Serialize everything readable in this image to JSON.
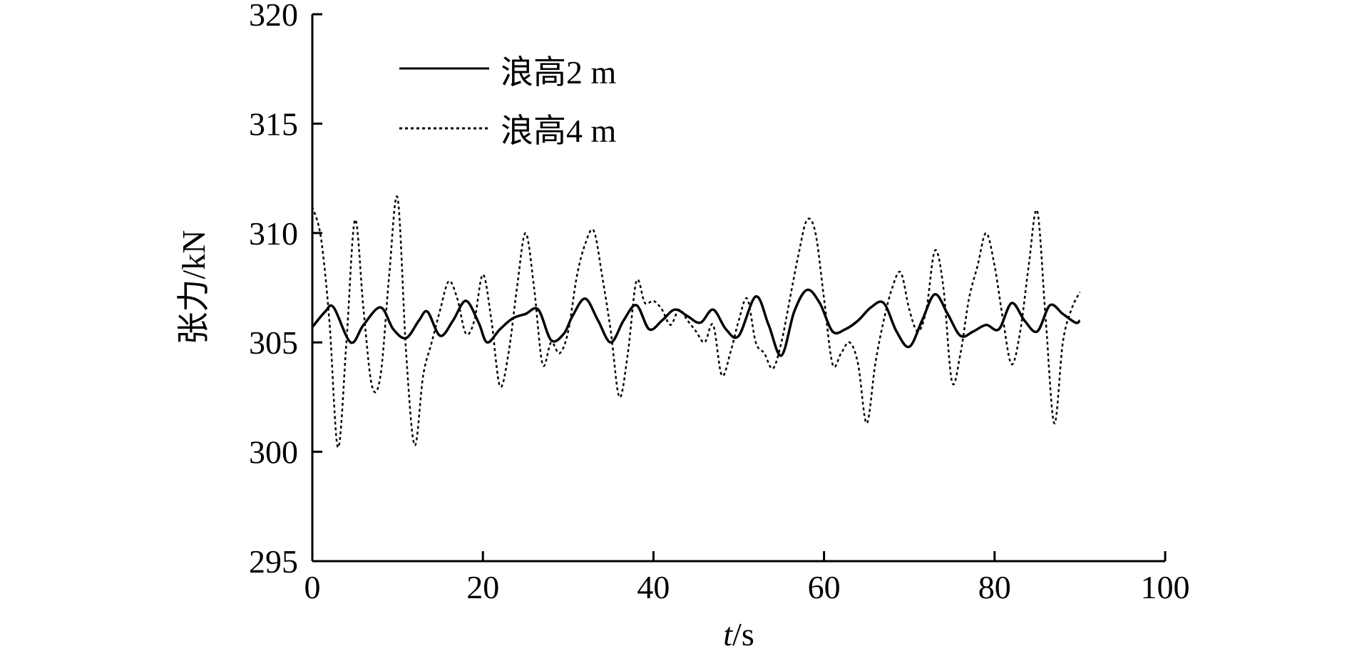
{
  "chart_data": {
    "type": "line",
    "xlabel_var": "t",
    "xlabel_unit": "/s",
    "ylabel": "张力/kN",
    "xlim": [
      0,
      100
    ],
    "ylim": [
      295,
      320
    ],
    "xticks": [
      0,
      20,
      40,
      60,
      80,
      100
    ],
    "yticks": [
      295,
      300,
      305,
      310,
      315,
      320
    ],
    "xtick_labels": [
      "0",
      "20",
      "40",
      "60",
      "80",
      "100"
    ],
    "ytick_labels": [
      "295",
      "300",
      "305",
      "310",
      "315",
      "320"
    ],
    "grid": false,
    "legend_position": "top-left",
    "series": [
      {
        "name": "浪高2 m",
        "style": "solid",
        "color": "#000000",
        "x": [
          0,
          1.5,
          2.5,
          4.5,
          6,
          8,
          9.5,
          11,
          12.5,
          13.5,
          15,
          16.5,
          18,
          19.5,
          20.5,
          22,
          23.5,
          25,
          26.5,
          28,
          29.5,
          30.5,
          32,
          33.5,
          35,
          36.5,
          38,
          39.5,
          41,
          42.5,
          44,
          45.5,
          47,
          48.5,
          50,
          52,
          53.5,
          55,
          56.5,
          58,
          59.5,
          61,
          62.5,
          64,
          65.5,
          67,
          68.5,
          70,
          71.5,
          73,
          74.5,
          76,
          77.5,
          79,
          80.5,
          82,
          83.5,
          85,
          86.5,
          88,
          89.5,
          90
        ],
        "y": [
          305.7,
          306.4,
          306.6,
          305.0,
          305.8,
          306.6,
          305.6,
          305.2,
          306.0,
          306.4,
          305.3,
          306.0,
          306.9,
          305.9,
          305.0,
          305.6,
          306.1,
          306.3,
          306.5,
          305.1,
          305.4,
          306.2,
          307.0,
          306.0,
          305.0,
          306.0,
          306.7,
          305.6,
          306.0,
          306.5,
          306.2,
          305.9,
          306.5,
          305.6,
          305.3,
          307.1,
          305.8,
          304.4,
          306.4,
          307.4,
          306.8,
          305.5,
          305.6,
          306.0,
          306.6,
          306.8,
          305.5,
          304.8,
          306.0,
          307.2,
          306.3,
          305.3,
          305.5,
          305.8,
          305.6,
          306.8,
          306.0,
          305.5,
          306.7,
          306.3,
          305.9,
          306.0
        ]
      },
      {
        "name": "浪高4 m",
        "style": "dotted",
        "color": "#000000",
        "x": [
          0,
          1,
          2,
          3,
          4,
          5,
          6,
          7,
          8,
          9,
          10,
          11,
          12,
          13,
          14,
          15,
          16,
          17,
          18,
          19,
          20,
          21,
          22,
          23,
          24,
          25,
          26,
          27,
          28,
          29,
          30,
          31,
          32,
          33,
          34,
          35,
          36,
          37,
          38,
          39,
          40,
          41,
          42,
          43,
          44,
          45,
          46,
          47,
          48,
          49,
          50,
          51,
          52,
          53,
          54,
          55,
          56,
          57,
          58,
          59,
          60,
          61,
          62,
          63,
          64,
          65,
          66,
          67,
          68,
          69,
          70,
          71,
          72,
          73,
          74,
          75,
          76,
          77,
          78,
          79,
          80,
          81,
          82,
          83,
          84,
          85,
          86,
          87,
          88,
          89,
          90
        ],
        "y": [
          311.2,
          309.8,
          306.0,
          300.2,
          305.0,
          310.6,
          306.5,
          303.0,
          303.5,
          308.0,
          311.6,
          304.5,
          300.3,
          303.5,
          305.0,
          306.5,
          307.8,
          307.0,
          305.4,
          306.0,
          308.1,
          306.0,
          303.0,
          304.5,
          307.5,
          310.0,
          307.5,
          304.0,
          305.0,
          304.5,
          305.5,
          308.0,
          309.5,
          310.1,
          308.0,
          305.5,
          302.5,
          304.5,
          307.8,
          306.8,
          306.9,
          306.5,
          305.8,
          306.5,
          306.0,
          305.5,
          305.0,
          305.8,
          303.5,
          304.5,
          306.0,
          307.0,
          305.0,
          304.5,
          303.8,
          305.0,
          307.0,
          309.0,
          310.6,
          310.0,
          307.0,
          304.0,
          304.5,
          305.0,
          304.0,
          301.3,
          304.0,
          306.0,
          307.5,
          308.2,
          306.5,
          305.5,
          306.5,
          309.2,
          307.5,
          303.2,
          304.5,
          307.0,
          308.5,
          310.0,
          308.5,
          306.0,
          304.0,
          305.5,
          308.5,
          311.0,
          306.0,
          301.3,
          305.0,
          306.5,
          307.3
        ]
      }
    ]
  }
}
